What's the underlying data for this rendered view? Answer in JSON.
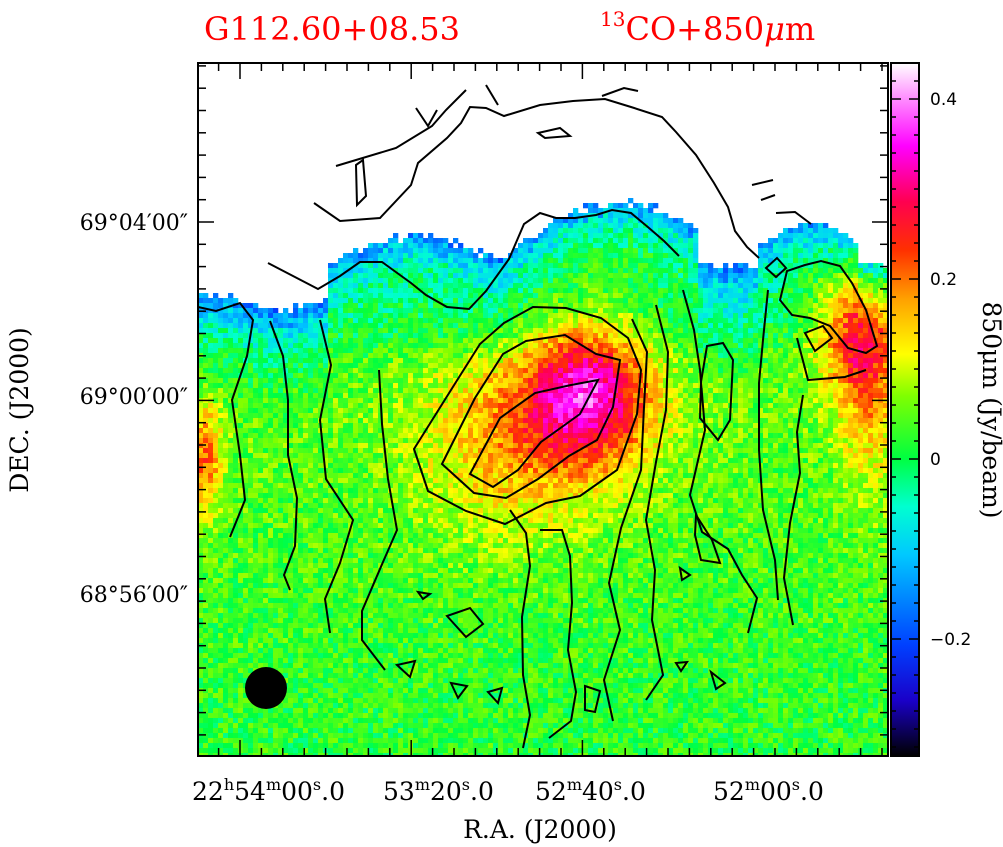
{
  "chart_data": {
    "type": "heatmap",
    "title_left": "G112.60+08.53",
    "title_right_sup": "13",
    "title_right_main": "CO+850",
    "title_right_mu": "μ",
    "title_right_unit": "m",
    "xlabel": "R.A. (J2000)",
    "ylabel": "DEC. (J2000)",
    "x_ticks": [
      {
        "h": "22",
        "m": "54",
        "s": "00",
        "f": "0"
      },
      {
        "h": "",
        "m": "53",
        "s": "20",
        "f": "0"
      },
      {
        "h": "",
        "m": "52",
        "s": "40",
        "f": "0"
      },
      {
        "h": "",
        "m": "52",
        "s": "00",
        "f": "0"
      }
    ],
    "y_ticks": [
      "69°04′00″",
      "69°00′00″",
      "68°56′00″"
    ],
    "colorbar": {
      "label": "850μm (Jy/beam)",
      "min": -0.33,
      "max": 0.44,
      "ticks": [
        "0.4",
        "0.2",
        "0",
        "−0.2"
      ],
      "tick_values": [
        0.4,
        0.2,
        0.0,
        -0.2
      ]
    },
    "features": [
      {
        "name": "central emission peak",
        "value_jy_per_beam": 0.25,
        "ra": "22h52m40s",
        "dec": "+69°00′"
      },
      {
        "name": "western edge emission",
        "value_jy_per_beam": 0.2,
        "ra": "22h54m20s",
        "dec": "+68°59′"
      },
      {
        "name": "eastern edge emission",
        "value_jy_per_beam": 0.25,
        "ra": "22h51m40s",
        "dec": "+69°02′"
      },
      {
        "name": "negative northern rim",
        "value_jy_per_beam": -0.25,
        "ra": "22h53m20s",
        "dec": "+69°03′"
      }
    ],
    "contours": "13CO integrated intensity (black)",
    "beam": "filled black circle, lower left"
  },
  "colors": {
    "title": "#ff0000",
    "frame": "#000000",
    "contour": "#000000",
    "colormap": [
      "#000000",
      "#0000ff",
      "#00ffff",
      "#00ff00",
      "#ffff00",
      "#ff0000",
      "#ff00ff",
      "#ffffff"
    ]
  }
}
